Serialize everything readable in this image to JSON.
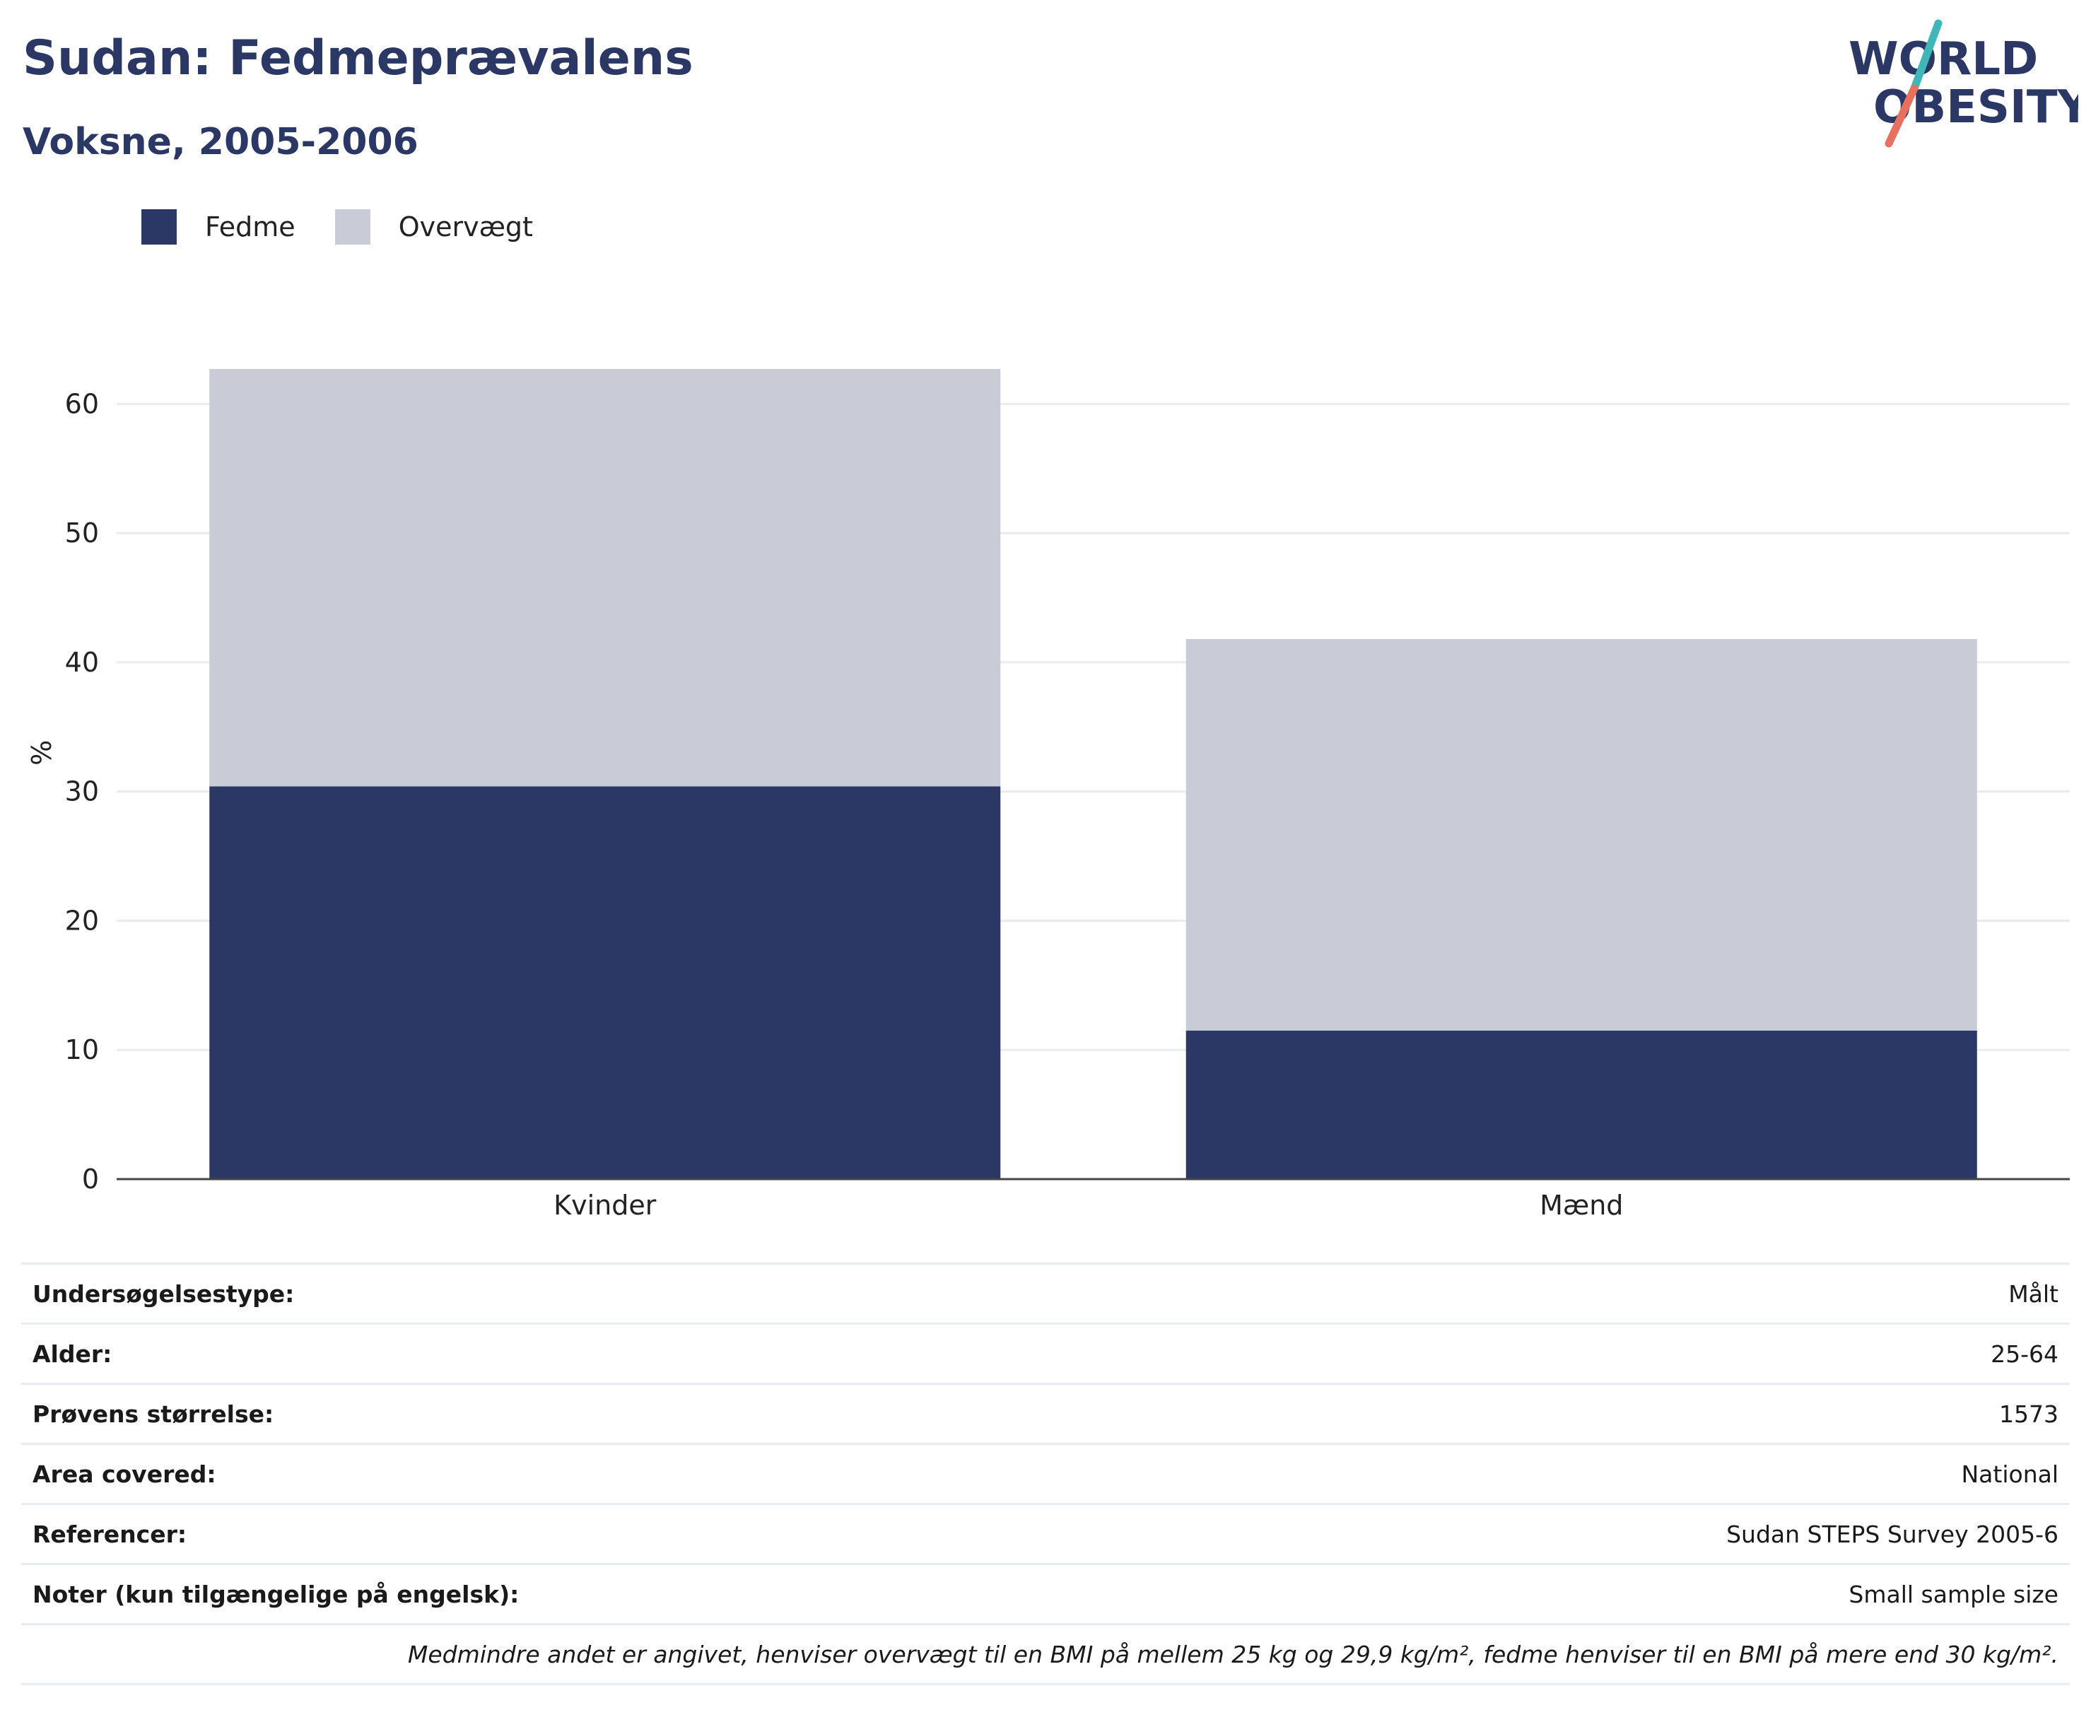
{
  "header": {
    "title": "Sudan: Fedmeprævalens",
    "subtitle": "Voksne, 2005-2006"
  },
  "logo": {
    "line1": "WORLD",
    "line2": "OBESITY",
    "colors": {
      "text": "#2b3765",
      "slash_top": "#3fb6b8",
      "slash_bottom": "#e8705f"
    }
  },
  "colors": {
    "obesity": "#2b3765",
    "overweight": "#c9cbd7",
    "grid": "#e9ebef",
    "axis": "#444444"
  },
  "chart_data": {
    "type": "bar",
    "stacked": true,
    "categories": [
      "Kvinder",
      "Mænd"
    ],
    "series": [
      {
        "name": "Fedme",
        "values": [
          30.4,
          11.5
        ],
        "color": "#2b3765"
      },
      {
        "name": "Overvægt",
        "values": [
          32.3,
          30.3
        ],
        "color": "#c9cbd7"
      }
    ],
    "ylabel": "%",
    "xlabel": "",
    "ylim": [
      0,
      65
    ],
    "yticks": [
      0,
      10,
      20,
      30,
      40,
      50,
      60
    ],
    "grid": true,
    "legend_position": "top-left"
  },
  "info_table": {
    "rows": [
      {
        "label": "Undersøgelsestype:",
        "value": "Målt"
      },
      {
        "label": "Alder:",
        "value": "25-64"
      },
      {
        "label": "Prøvens størrelse:",
        "value": "1573"
      },
      {
        "label": "Area covered:",
        "value": "National"
      },
      {
        "label": "Referencer:",
        "value": "Sudan STEPS Survey 2005-6"
      },
      {
        "label": "Noter (kun tilgængelige på engelsk):",
        "value": "Small sample size"
      }
    ],
    "footnote": "Medmindre andet er angivet, henviser overvægt til en BMI på mellem 25 kg og 29,9 kg/m², fedme henviser til en BMI på mere end 30 kg/m²."
  }
}
